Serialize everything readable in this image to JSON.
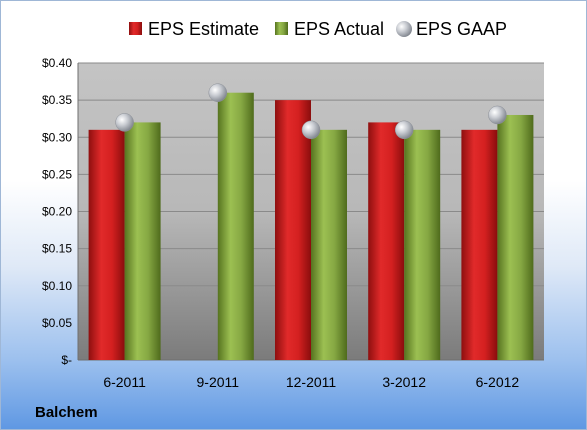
{
  "company_label": "Balchem",
  "chart_data": {
    "type": "bar",
    "categories": [
      "6-2011",
      "9-2011",
      "12-2011",
      "3-2012",
      "6-2012"
    ],
    "series": [
      {
        "name": "EPS Estimate",
        "type": "bar",
        "color": "#cc1f1f",
        "values": [
          0.31,
          null,
          0.35,
          0.32,
          0.31
        ]
      },
      {
        "name": "EPS Actual",
        "type": "bar",
        "color": "#7fa33a",
        "values": [
          0.32,
          0.36,
          0.31,
          0.31,
          0.33
        ]
      },
      {
        "name": "EPS GAAP",
        "type": "scatter",
        "color": "#b9bec6",
        "values": [
          0.32,
          0.36,
          0.31,
          0.31,
          0.33
        ]
      }
    ],
    "y_ticks": [
      0,
      0.05,
      0.1,
      0.15,
      0.2,
      0.25,
      0.3,
      0.35,
      0.4
    ],
    "y_tick_labels": [
      "$-",
      "$0.05",
      "$0.10",
      "$0.15",
      "$0.20",
      "$0.25",
      "$0.30",
      "$0.35",
      "$0.40"
    ],
    "ylim": [
      0,
      0.4
    ],
    "grid": true,
    "legend_position": "top"
  }
}
